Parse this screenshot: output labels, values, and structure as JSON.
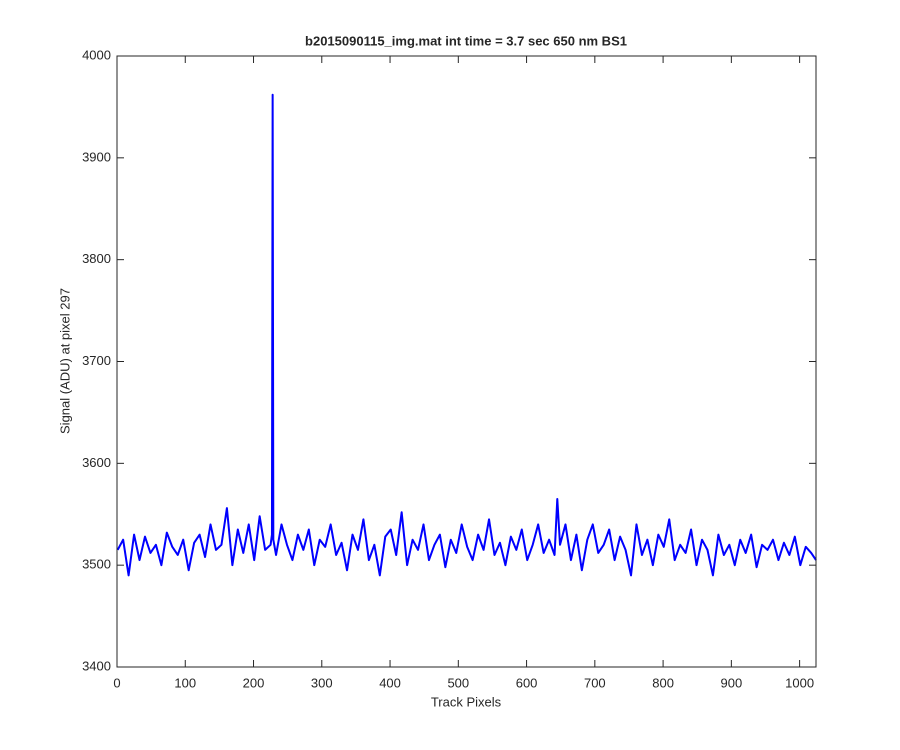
{
  "chart_data": {
    "type": "line",
    "title": "b2015090115_img.mat int time = 3.7 sec  650 nm BS1",
    "x_label": "Track Pixels",
    "y_label": "Signal (ADU) at pixel 297",
    "xlim": [
      0,
      1024
    ],
    "ylim": [
      3400,
      4000
    ],
    "xticks": [
      0,
      100,
      200,
      300,
      400,
      500,
      600,
      700,
      800,
      900,
      1000
    ],
    "yticks": [
      3400,
      3500,
      3600,
      3700,
      3800,
      3900,
      4000
    ],
    "grid": false,
    "x": [
      1,
      9,
      17,
      25,
      33,
      41,
      49,
      57,
      65,
      73,
      81,
      89,
      97,
      105,
      113,
      121,
      129,
      137,
      145,
      153,
      161,
      169,
      177,
      185,
      193,
      201,
      209,
      217,
      225,
      227,
      228,
      229,
      233,
      241,
      249,
      257,
      265,
      273,
      281,
      289,
      297,
      305,
      313,
      321,
      329,
      337,
      345,
      353,
      361,
      369,
      377,
      385,
      393,
      401,
      409,
      417,
      425,
      433,
      441,
      449,
      457,
      465,
      473,
      481,
      489,
      497,
      505,
      513,
      521,
      529,
      537,
      545,
      553,
      561,
      569,
      577,
      585,
      593,
      601,
      609,
      617,
      625,
      633,
      641,
      645,
      649,
      657,
      665,
      673,
      681,
      689,
      697,
      705,
      713,
      721,
      729,
      737,
      745,
      753,
      761,
      769,
      777,
      785,
      793,
      801,
      809,
      817,
      825,
      833,
      841,
      849,
      857,
      865,
      873,
      881,
      889,
      897,
      905,
      913,
      921,
      929,
      937,
      945,
      953,
      961,
      969,
      977,
      985,
      993,
      1001,
      1009,
      1017,
      1024
    ],
    "series": [
      {
        "color": "#0000ff",
        "values": [
          3515,
          3525,
          3490,
          3530,
          3505,
          3528,
          3512,
          3520,
          3500,
          3532,
          3518,
          3510,
          3525,
          3495,
          3522,
          3530,
          3508,
          3540,
          3515,
          3520,
          3556,
          3500,
          3535,
          3512,
          3540,
          3505,
          3548,
          3515,
          3520,
          3530,
          3962,
          3525,
          3510,
          3540,
          3520,
          3505,
          3530,
          3515,
          3535,
          3500,
          3525,
          3518,
          3540,
          3510,
          3522,
          3495,
          3530,
          3515,
          3545,
          3505,
          3520,
          3490,
          3528,
          3535,
          3510,
          3552,
          3500,
          3525,
          3515,
          3540,
          3505,
          3520,
          3530,
          3498,
          3525,
          3512,
          3540,
          3518,
          3505,
          3530,
          3515,
          3545,
          3510,
          3522,
          3500,
          3528,
          3515,
          3535,
          3505,
          3520,
          3540,
          3512,
          3525,
          3510,
          3565,
          3520,
          3540,
          3505,
          3530,
          3495,
          3525,
          3540,
          3512,
          3520,
          3535,
          3505,
          3528,
          3515,
          3490,
          3540,
          3510,
          3525,
          3500,
          3530,
          3518,
          3545,
          3505,
          3520,
          3512,
          3535,
          3500,
          3525,
          3515,
          3490,
          3530,
          3510,
          3520,
          3500,
          3525,
          3512,
          3530,
          3498,
          3520,
          3515,
          3525,
          3505,
          3522,
          3510,
          3528,
          3500,
          3518,
          3512,
          3505
        ]
      }
    ]
  }
}
